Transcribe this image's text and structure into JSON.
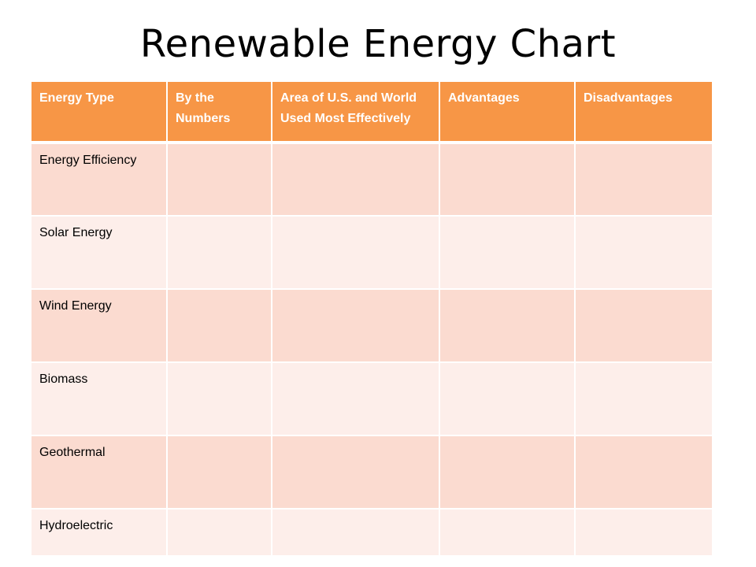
{
  "title": "Renewable Energy Chart",
  "colors": {
    "header_bg": "#f79646",
    "row_dark": "#fbdbd0",
    "row_light": "#fdeeea",
    "header_text": "#ffffff"
  },
  "table": {
    "headers": [
      "Energy Type",
      "By the Numbers",
      "Area of U.S. and World Used Most Effectively",
      "Advantages",
      "Disadvantages"
    ],
    "rows": [
      [
        "Energy Efficiency",
        "",
        "",
        "",
        ""
      ],
      [
        "Solar Energy",
        "",
        "",
        "",
        ""
      ],
      [
        "Wind Energy",
        "",
        "",
        "",
        ""
      ],
      [
        "Biomass",
        "",
        "",
        "",
        ""
      ],
      [
        "Geothermal",
        "",
        "",
        "",
        ""
      ],
      [
        "Hydroelectric",
        "",
        "",
        "",
        ""
      ]
    ]
  }
}
